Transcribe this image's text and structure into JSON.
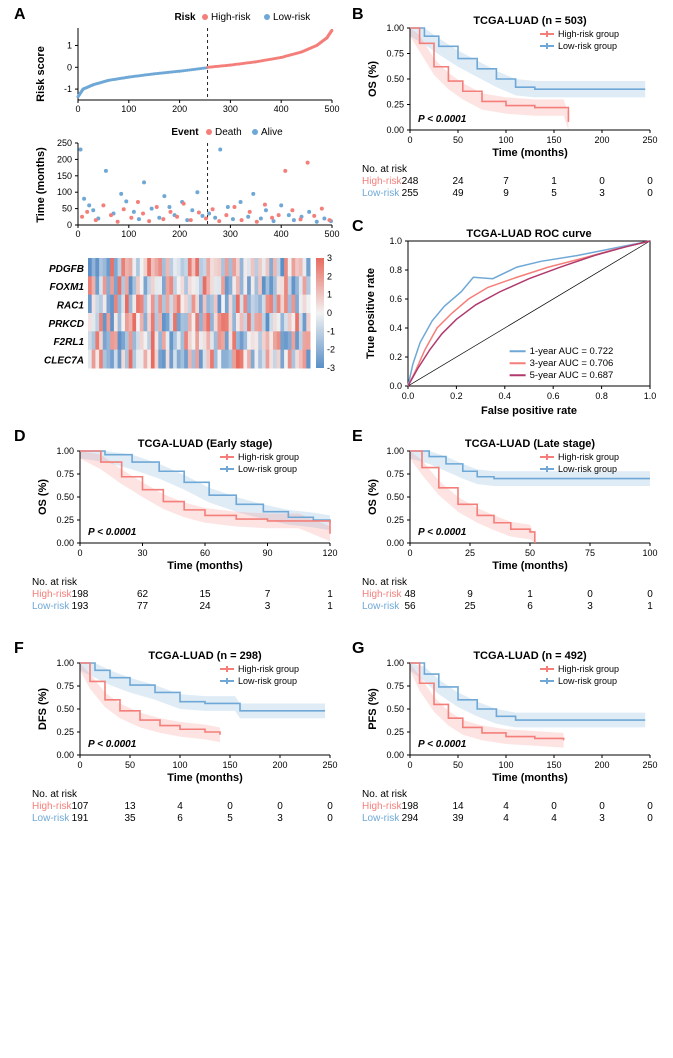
{
  "colors": {
    "high": "#f47f7a",
    "low": "#6fa8d6",
    "line1y": "#6fa8d6",
    "line3y": "#f47f7a",
    "line5y": "#b03a6e",
    "axis": "#000000",
    "grid": "#bfbfbf",
    "heat_pos": "#e86b60",
    "heat_neg": "#5a8fc7",
    "heat_mid": "#f2f2f2",
    "background": "#ffffff",
    "text": "#000000",
    "dash": "#222222"
  },
  "panelA": {
    "label": "A",
    "risk_legend": {
      "title": "Risk",
      "high": "High-risk",
      "low": "Low-risk"
    },
    "risk_score": {
      "ylabel": "Risk score",
      "ylim": [
        -1,
        1
      ],
      "yticks": [
        -1,
        0,
        1
      ],
      "xlim": [
        0,
        500
      ],
      "xticks": [
        0,
        100,
        200,
        300,
        400,
        500
      ],
      "split_x": 255,
      "xys_low": [
        [
          0,
          -1.35
        ],
        [
          10,
          -1.0
        ],
        [
          30,
          -0.8
        ],
        [
          60,
          -0.6
        ],
        [
          100,
          -0.45
        ],
        [
          150,
          -0.3
        ],
        [
          200,
          -0.18
        ],
        [
          255,
          -0.02
        ]
      ],
      "xys_high": [
        [
          256,
          0.0
        ],
        [
          300,
          0.1
        ],
        [
          350,
          0.25
        ],
        [
          400,
          0.45
        ],
        [
          440,
          0.7
        ],
        [
          470,
          1.0
        ],
        [
          490,
          1.35
        ],
        [
          500,
          1.7
        ]
      ]
    },
    "event_legend": {
      "title": "Event",
      "death": "Death",
      "alive": "Alive"
    },
    "survival_scatter": {
      "ylabel": "Time (months)",
      "ylim": [
        0,
        250
      ],
      "yticks": [
        0,
        50,
        100,
        150,
        200,
        250
      ],
      "xlim": [
        0,
        500
      ],
      "xticks": [
        0,
        100,
        200,
        300,
        400,
        500
      ],
      "split_x": 255,
      "alive": [
        [
          5,
          230
        ],
        [
          30,
          45
        ],
        [
          55,
          165
        ],
        [
          12,
          80
        ],
        [
          22,
          60
        ],
        [
          40,
          20
        ],
        [
          70,
          35
        ],
        [
          85,
          95
        ],
        [
          95,
          72
        ],
        [
          110,
          40
        ],
        [
          120,
          18
        ],
        [
          130,
          130
        ],
        [
          145,
          50
        ],
        [
          160,
          22
        ],
        [
          170,
          88
        ],
        [
          180,
          55
        ],
        [
          190,
          30
        ],
        [
          205,
          70
        ],
        [
          215,
          15
        ],
        [
          225,
          45
        ],
        [
          235,
          100
        ],
        [
          245,
          28
        ],
        [
          258,
          35
        ],
        [
          270,
          22
        ],
        [
          280,
          230
        ],
        [
          295,
          55
        ],
        [
          305,
          18
        ],
        [
          320,
          70
        ],
        [
          335,
          25
        ],
        [
          345,
          95
        ],
        [
          360,
          20
        ],
        [
          370,
          45
        ],
        [
          385,
          12
        ],
        [
          400,
          60
        ],
        [
          415,
          30
        ],
        [
          425,
          15
        ],
        [
          440,
          25
        ],
        [
          455,
          40
        ],
        [
          470,
          10
        ],
        [
          485,
          20
        ],
        [
          498,
          12
        ]
      ],
      "death": [
        [
          8,
          25
        ],
        [
          18,
          40
        ],
        [
          35,
          15
        ],
        [
          50,
          60
        ],
        [
          65,
          30
        ],
        [
          78,
          10
        ],
        [
          90,
          48
        ],
        [
          105,
          22
        ],
        [
          118,
          70
        ],
        [
          128,
          35
        ],
        [
          140,
          12
        ],
        [
          155,
          55
        ],
        [
          168,
          18
        ],
        [
          182,
          40
        ],
        [
          195,
          25
        ],
        [
          208,
          65
        ],
        [
          222,
          15
        ],
        [
          238,
          38
        ],
        [
          252,
          20
        ],
        [
          265,
          48
        ],
        [
          278,
          12
        ],
        [
          292,
          30
        ],
        [
          308,
          55
        ],
        [
          322,
          15
        ],
        [
          338,
          40
        ],
        [
          352,
          10
        ],
        [
          368,
          62
        ],
        [
          382,
          22
        ],
        [
          395,
          30
        ],
        [
          408,
          165
        ],
        [
          422,
          45
        ],
        [
          438,
          17
        ],
        [
          452,
          190
        ],
        [
          465,
          28
        ],
        [
          480,
          50
        ],
        [
          495,
          15
        ]
      ]
    },
    "heatmap": {
      "genes": [
        "PDGFB",
        "FOXM1",
        "RAC1",
        "PRKCD",
        "F2RL1",
        "CLEC7A"
      ],
      "legend_ticks": [
        3,
        2,
        1,
        0,
        -1,
        -2,
        -3
      ],
      "n_cols": 60
    }
  },
  "panelB": {
    "label": "B",
    "title": "TCGA-LUAD (n = 503)",
    "ylabel": "OS (%)",
    "xlabel": "Time (months)",
    "xlim": [
      0,
      250
    ],
    "xticks": [
      0,
      50,
      100,
      150,
      200,
      250
    ],
    "ylim": [
      0,
      1
    ],
    "yticks": [
      0.0,
      0.25,
      0.5,
      0.75,
      1.0
    ],
    "legend": {
      "high": "High-risk group",
      "low": "Low-risk group"
    },
    "pvalue": "P < 0.0001",
    "high_xy": [
      [
        0,
        1.0
      ],
      [
        10,
        0.85
      ],
      [
        25,
        0.62
      ],
      [
        40,
        0.48
      ],
      [
        55,
        0.38
      ],
      [
        75,
        0.28
      ],
      [
        100,
        0.24
      ],
      [
        130,
        0.22
      ],
      [
        160,
        0.22
      ],
      [
        165,
        0.08
      ]
    ],
    "low_xy": [
      [
        0,
        1.0
      ],
      [
        15,
        0.92
      ],
      [
        30,
        0.82
      ],
      [
        50,
        0.7
      ],
      [
        70,
        0.6
      ],
      [
        90,
        0.5
      ],
      [
        110,
        0.42
      ],
      [
        130,
        0.4
      ],
      [
        170,
        0.4
      ],
      [
        245,
        0.4
      ]
    ],
    "risk_table": {
      "header": "No. at risk",
      "ticks": [
        0,
        50,
        100,
        150,
        200,
        250
      ],
      "high": [
        248,
        24,
        7,
        1,
        0,
        0
      ],
      "low": [
        255,
        49,
        9,
        5,
        3,
        0
      ],
      "high_label": "High-risk",
      "low_label": "Low-risk"
    }
  },
  "panelC": {
    "label": "C",
    "title": "TCGA-LUAD ROC curve",
    "xlabel": "False positive rate",
    "ylabel": "True positive rate",
    "xlim": [
      0,
      1
    ],
    "ylim": [
      0,
      1
    ],
    "xticks": [
      0.0,
      0.2,
      0.4,
      0.6,
      0.8,
      1.0
    ],
    "yticks": [
      0.0,
      0.2,
      0.4,
      0.6,
      0.8,
      1.0
    ],
    "legend": {
      "l1": "1-year AUC = 0.722",
      "l3": "3-year AUC = 0.706",
      "l5": "5-year AUC = 0.687"
    },
    "roc1": [
      [
        0,
        0
      ],
      [
        0.02,
        0.15
      ],
      [
        0.05,
        0.3
      ],
      [
        0.1,
        0.45
      ],
      [
        0.15,
        0.55
      ],
      [
        0.22,
        0.65
      ],
      [
        0.27,
        0.75
      ],
      [
        0.35,
        0.74
      ],
      [
        0.45,
        0.82
      ],
      [
        0.55,
        0.86
      ],
      [
        0.7,
        0.9
      ],
      [
        0.85,
        0.95
      ],
      [
        1,
        1
      ]
    ],
    "roc3": [
      [
        0,
        0
      ],
      [
        0.03,
        0.1
      ],
      [
        0.07,
        0.25
      ],
      [
        0.12,
        0.4
      ],
      [
        0.18,
        0.5
      ],
      [
        0.25,
        0.6
      ],
      [
        0.33,
        0.68
      ],
      [
        0.45,
        0.75
      ],
      [
        0.58,
        0.82
      ],
      [
        0.72,
        0.88
      ],
      [
        0.85,
        0.94
      ],
      [
        1,
        1
      ]
    ],
    "roc5": [
      [
        0,
        0
      ],
      [
        0.04,
        0.12
      ],
      [
        0.09,
        0.25
      ],
      [
        0.14,
        0.36
      ],
      [
        0.2,
        0.46
      ],
      [
        0.28,
        0.56
      ],
      [
        0.38,
        0.65
      ],
      [
        0.5,
        0.74
      ],
      [
        0.63,
        0.82
      ],
      [
        0.77,
        0.9
      ],
      [
        0.9,
        0.96
      ],
      [
        1,
        1
      ]
    ]
  },
  "panelD": {
    "label": "D",
    "title": "TCGA-LUAD (Early stage)",
    "ylabel": "OS (%)",
    "xlabel": "Time (months)",
    "xlim": [
      0,
      120
    ],
    "xticks": [
      0,
      30,
      60,
      90,
      120
    ],
    "ylim": [
      0,
      1
    ],
    "yticks": [
      0.0,
      0.25,
      0.5,
      0.75,
      1.0
    ],
    "legend": {
      "high": "High-risk group",
      "low": "Low-risk group"
    },
    "pvalue": "P < 0.0001",
    "high_xy": [
      [
        0,
        1.0
      ],
      [
        10,
        0.88
      ],
      [
        20,
        0.72
      ],
      [
        30,
        0.58
      ],
      [
        40,
        0.45
      ],
      [
        50,
        0.36
      ],
      [
        60,
        0.3
      ],
      [
        75,
        0.26
      ],
      [
        90,
        0.24
      ],
      [
        105,
        0.24
      ],
      [
        120,
        0.1
      ]
    ],
    "low_xy": [
      [
        0,
        1.0
      ],
      [
        12,
        0.96
      ],
      [
        25,
        0.88
      ],
      [
        38,
        0.78
      ],
      [
        50,
        0.66
      ],
      [
        62,
        0.52
      ],
      [
        75,
        0.42
      ],
      [
        88,
        0.34
      ],
      [
        100,
        0.28
      ],
      [
        112,
        0.25
      ],
      [
        120,
        0.22
      ]
    ],
    "risk_table": {
      "header": "No. at risk",
      "ticks": [
        0,
        30,
        60,
        90,
        120
      ],
      "high": [
        198,
        62,
        15,
        7,
        1
      ],
      "low": [
        193,
        77,
        24,
        3,
        1
      ],
      "high_label": "High-risk",
      "low_label": "Low-risk"
    }
  },
  "panelE": {
    "label": "E",
    "title": "TCGA-LUAD (Late stage)",
    "ylabel": "OS (%)",
    "xlabel": "Time (months)",
    "xlim": [
      0,
      100
    ],
    "xticks": [
      0,
      25,
      50,
      75,
      100
    ],
    "ylim": [
      0,
      1
    ],
    "yticks": [
      0.0,
      0.25,
      0.5,
      0.75,
      1.0
    ],
    "legend": {
      "high": "High-risk group",
      "low": "Low-risk group"
    },
    "pvalue": "P < 0.0001",
    "high_xy": [
      [
        0,
        1.0
      ],
      [
        5,
        0.82
      ],
      [
        12,
        0.6
      ],
      [
        20,
        0.42
      ],
      [
        28,
        0.3
      ],
      [
        35,
        0.22
      ],
      [
        42,
        0.15
      ],
      [
        50,
        0.12
      ],
      [
        52,
        0.0
      ]
    ],
    "low_xy": [
      [
        0,
        1.0
      ],
      [
        8,
        0.94
      ],
      [
        15,
        0.86
      ],
      [
        22,
        0.78
      ],
      [
        28,
        0.72
      ],
      [
        35,
        0.7
      ],
      [
        50,
        0.7
      ],
      [
        75,
        0.7
      ],
      [
        100,
        0.7
      ]
    ],
    "risk_table": {
      "header": "No. at risk",
      "ticks": [
        0,
        25,
        50,
        75,
        100
      ],
      "high": [
        48,
        9,
        1,
        0,
        0
      ],
      "low": [
        56,
        25,
        6,
        3,
        1
      ],
      "high_label": "High-risk",
      "low_label": "Low-risk"
    }
  },
  "panelF": {
    "label": "F",
    "title": "TCGA-LUAD (n = 298)",
    "ylabel": "DFS (%)",
    "xlabel": "Time (months)",
    "xlim": [
      0,
      250
    ],
    "xticks": [
      0,
      50,
      100,
      150,
      200,
      250
    ],
    "ylim": [
      0,
      1
    ],
    "yticks": [
      0.0,
      0.25,
      0.5,
      0.75,
      1.0
    ],
    "legend": {
      "high": "High-risk group",
      "low": "Low-risk group"
    },
    "pvalue": "P < 0.0001",
    "high_xy": [
      [
        0,
        1.0
      ],
      [
        10,
        0.8
      ],
      [
        25,
        0.6
      ],
      [
        40,
        0.48
      ],
      [
        60,
        0.38
      ],
      [
        80,
        0.32
      ],
      [
        100,
        0.28
      ],
      [
        125,
        0.25
      ],
      [
        140,
        0.22
      ]
    ],
    "low_xy": [
      [
        0,
        1.0
      ],
      [
        15,
        0.92
      ],
      [
        30,
        0.84
      ],
      [
        50,
        0.76
      ],
      [
        75,
        0.68
      ],
      [
        100,
        0.58
      ],
      [
        125,
        0.56
      ],
      [
        155,
        0.56
      ],
      [
        160,
        0.48
      ],
      [
        200,
        0.48
      ],
      [
        245,
        0.48
      ]
    ],
    "risk_table": {
      "header": "No. at risk",
      "ticks": [
        0,
        50,
        100,
        150,
        200,
        250
      ],
      "high": [
        107,
        13,
        4,
        0,
        0,
        0
      ],
      "low": [
        191,
        35,
        6,
        5,
        3,
        0
      ],
      "high_label": "High-risk",
      "low_label": "Low-risk"
    }
  },
  "panelG": {
    "label": "G",
    "title": "TCGA-LUAD (n = 492)",
    "ylabel": "PFS (%)",
    "xlabel": "Time (months)",
    "xlim": [
      0,
      250
    ],
    "xticks": [
      0,
      50,
      100,
      150,
      200,
      250
    ],
    "ylim": [
      0,
      1
    ],
    "yticks": [
      0.0,
      0.25,
      0.5,
      0.75,
      1.0
    ],
    "legend": {
      "high": "High-risk group",
      "low": "Low-risk group"
    },
    "pvalue": "P < 0.0001",
    "high_xy": [
      [
        0,
        1.0
      ],
      [
        10,
        0.78
      ],
      [
        25,
        0.55
      ],
      [
        40,
        0.4
      ],
      [
        55,
        0.3
      ],
      [
        75,
        0.24
      ],
      [
        100,
        0.2
      ],
      [
        130,
        0.18
      ],
      [
        160,
        0.16
      ],
      [
        160,
        0.16
      ]
    ],
    "low_xy": [
      [
        0,
        1.0
      ],
      [
        15,
        0.88
      ],
      [
        30,
        0.74
      ],
      [
        50,
        0.6
      ],
      [
        70,
        0.5
      ],
      [
        90,
        0.42
      ],
      [
        110,
        0.38
      ],
      [
        140,
        0.38
      ],
      [
        200,
        0.38
      ],
      [
        245,
        0.38
      ]
    ],
    "risk_table": {
      "header": "No. at risk",
      "ticks": [
        0,
        50,
        100,
        150,
        200,
        250
      ],
      "high": [
        198,
        14,
        4,
        0,
        0,
        0
      ],
      "low": [
        294,
        39,
        4,
        4,
        3,
        0
      ],
      "high_label": "High-risk",
      "low_label": "Low-risk"
    }
  }
}
